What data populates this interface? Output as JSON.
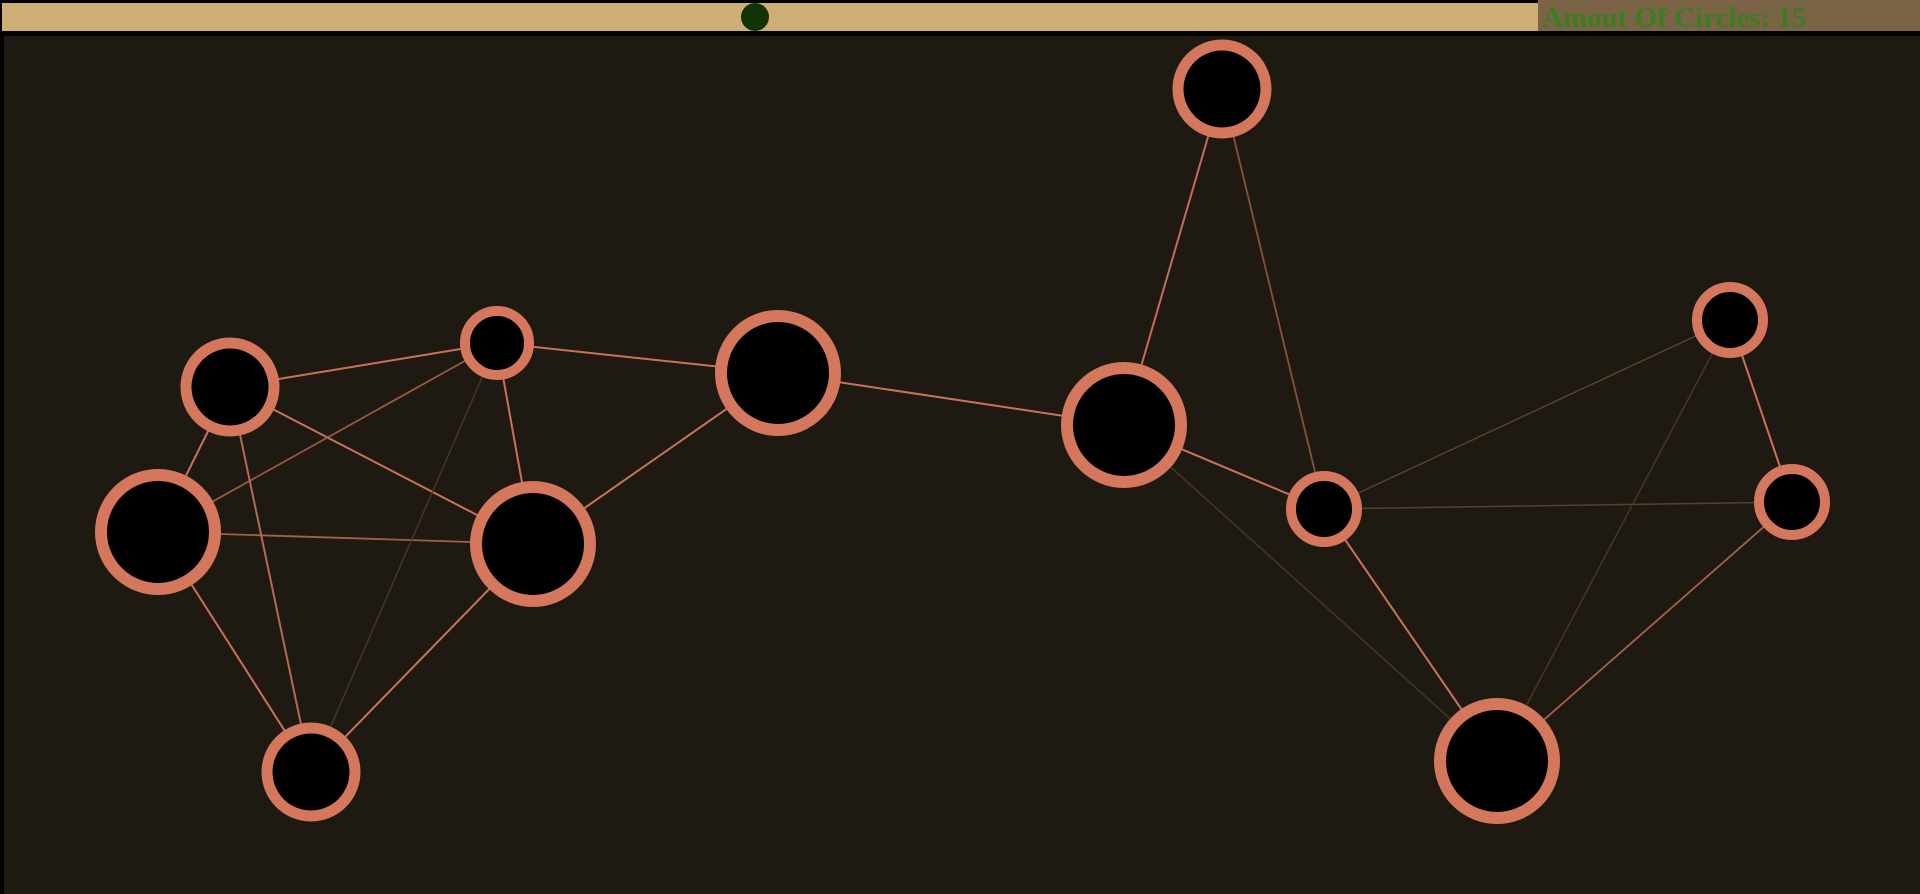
{
  "counter": {
    "label": "Amout Of Circles: 15"
  },
  "slider": {
    "level": 0.49
  },
  "colors": {
    "background": "#1e1a12",
    "track": "#cdae74",
    "thumb": "#123306",
    "panel": "#7b6446",
    "counter_text": "#3b7d23",
    "node_ring": "#d4775c",
    "node_fill": "#000000"
  },
  "graph": {
    "node_count": 15
  }
}
